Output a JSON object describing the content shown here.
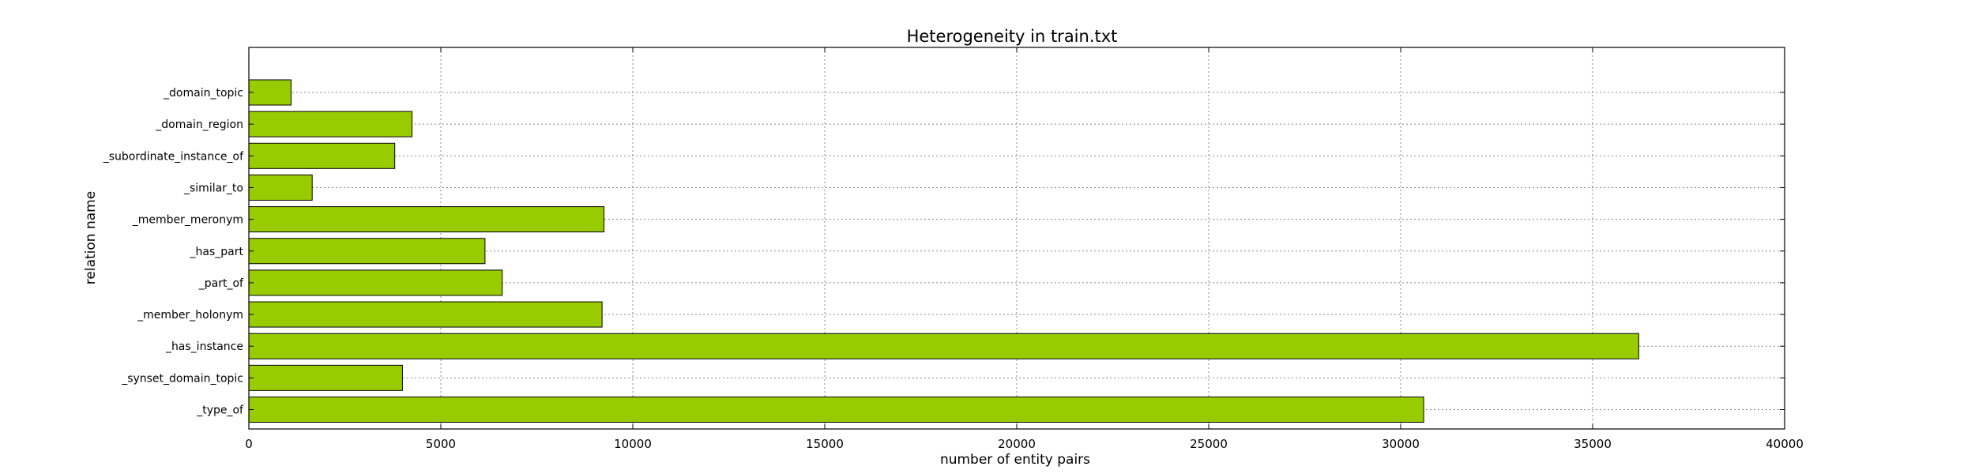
{
  "chart_data": {
    "type": "bar",
    "orientation": "horizontal",
    "title": "Heterogeneity in train.txt",
    "xlabel": "number of entity pairs",
    "ylabel": "relation name",
    "categories": [
      "_type_of",
      "_synset_domain_topic",
      "_has_instance",
      "_member_holonym",
      "_part_of",
      "_has_part",
      "_member_meronym",
      "_similar_to",
      "_subordinate_instance_of",
      "_domain_region",
      "_domain_topic"
    ],
    "values": [
      30600,
      4000,
      36200,
      9200,
      6600,
      6150,
      9250,
      1650,
      3800,
      4250,
      1100
    ],
    "xlim": [
      0,
      40000
    ],
    "xticks": [
      0,
      5000,
      10000,
      15000,
      20000,
      25000,
      30000,
      35000,
      40000
    ],
    "grid": true,
    "bar_color": "#99cc00",
    "edge_color": "#000000"
  }
}
